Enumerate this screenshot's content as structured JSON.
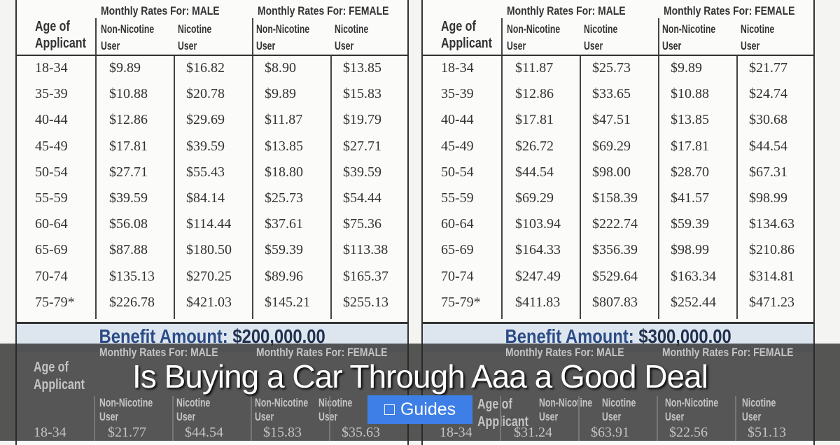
{
  "header": {
    "age": "Age of\nApplicant",
    "male": "Monthly Rates For: MALE",
    "female": "Monthly Rates For: FEMALE",
    "non_nicotine": "Non-Nicotine\nUser",
    "nicotine": "Nicotine\nUser"
  },
  "tables": [
    {
      "rows": [
        [
          "18-34",
          "$9.89",
          "$16.82",
          "$8.90",
          "$13.85"
        ],
        [
          "35-39",
          "$10.88",
          "$20.78",
          "$9.89",
          "$15.83"
        ],
        [
          "40-44",
          "$12.86",
          "$29.69",
          "$11.87",
          "$19.79"
        ],
        [
          "45-49",
          "$17.81",
          "$39.59",
          "$13.85",
          "$27.71"
        ],
        [
          "50-54",
          "$27.71",
          "$55.43",
          "$18.80",
          "$39.59"
        ],
        [
          "55-59",
          "$39.59",
          "$84.14",
          "$25.73",
          "$54.44"
        ],
        [
          "60-64",
          "$56.08",
          "$114.44",
          "$37.61",
          "$75.36"
        ],
        [
          "65-69",
          "$87.88",
          "$180.50",
          "$59.39",
          "$113.38"
        ],
        [
          "70-74",
          "$135.13",
          "$270.25",
          "$89.96",
          "$165.37"
        ],
        [
          "75-79*",
          "$226.78",
          "$421.03",
          "$145.21",
          "$255.13"
        ]
      ],
      "benefit_label": "Benefit Amount:",
      "benefit_value": "$200,000.00",
      "next_row": [
        "18-34",
        "$21.77",
        "$44.54",
        "$15.83",
        "$35.63"
      ]
    },
    {
      "rows": [
        [
          "18-34",
          "$11.87",
          "$25.73",
          "$9.89",
          "$21.77"
        ],
        [
          "35-39",
          "$12.86",
          "$33.65",
          "$10.88",
          "$24.74"
        ],
        [
          "40-44",
          "$17.81",
          "$47.51",
          "$13.85",
          "$30.68"
        ],
        [
          "45-49",
          "$26.72",
          "$69.29",
          "$17.81",
          "$44.54"
        ],
        [
          "50-54",
          "$44.54",
          "$98.00",
          "$28.70",
          "$67.31"
        ],
        [
          "55-59",
          "$69.29",
          "$158.39",
          "$41.57",
          "$98.99"
        ],
        [
          "60-64",
          "$103.94",
          "$222.74",
          "$59.39",
          "$134.63"
        ],
        [
          "65-69",
          "$164.33",
          "$356.39",
          "$98.99",
          "$210.86"
        ],
        [
          "70-74",
          "$247.49",
          "$529.64",
          "$163.34",
          "$314.81"
        ],
        [
          "75-79*",
          "$411.83",
          "$807.83",
          "$252.44",
          "$471.23"
        ]
      ],
      "benefit_label": "Benefit Amount:",
      "benefit_value": "$300,000.00",
      "next_row": [
        "18-34",
        "$31.24",
        "$63.91",
        "$22.56",
        "$51.13"
      ]
    }
  ],
  "overlay": {
    "title": "Is Buying a Car Through Aaa a Good Deal",
    "category_icon": "folder-icon",
    "category": "Guides",
    "badge_color": "#3d7fe6"
  }
}
